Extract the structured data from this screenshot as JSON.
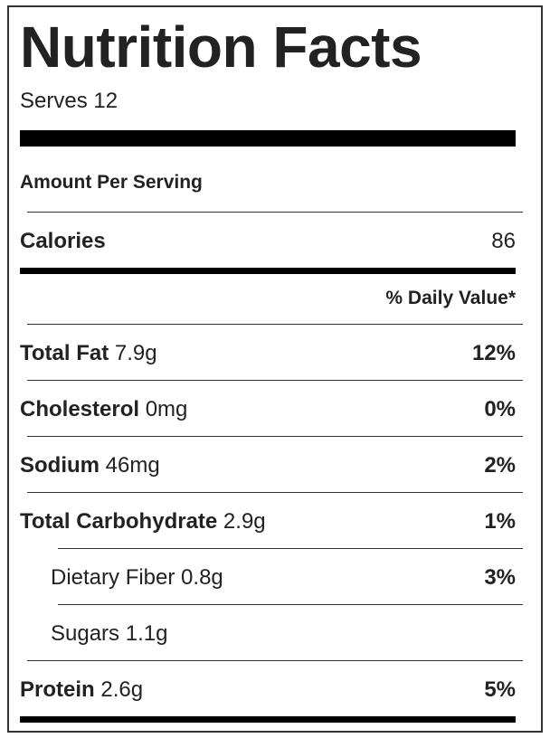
{
  "title": "Nutrition Facts",
  "serves": "Serves 12",
  "amount_per_serving": "Amount Per Serving",
  "calories": {
    "label": "Calories",
    "value": "86"
  },
  "daily_value_header": "% Daily Value*",
  "nutrients": [
    {
      "name": "Total Fat",
      "amount": "7.9g",
      "dv": "12%"
    },
    {
      "name": "Cholesterol",
      "amount": "0mg",
      "dv": "0%"
    },
    {
      "name": "Sodium",
      "amount": "46mg",
      "dv": "2%"
    },
    {
      "name": "Total Carbohydrate",
      "amount": "2.9g",
      "dv": "1%"
    },
    {
      "name": "Dietary Fiber",
      "amount": "0.8g",
      "dv": "3%"
    },
    {
      "name": "Sugars",
      "amount": "1.1g",
      "dv": ""
    },
    {
      "name": "Protein",
      "amount": "2.6g",
      "dv": "5%"
    }
  ]
}
